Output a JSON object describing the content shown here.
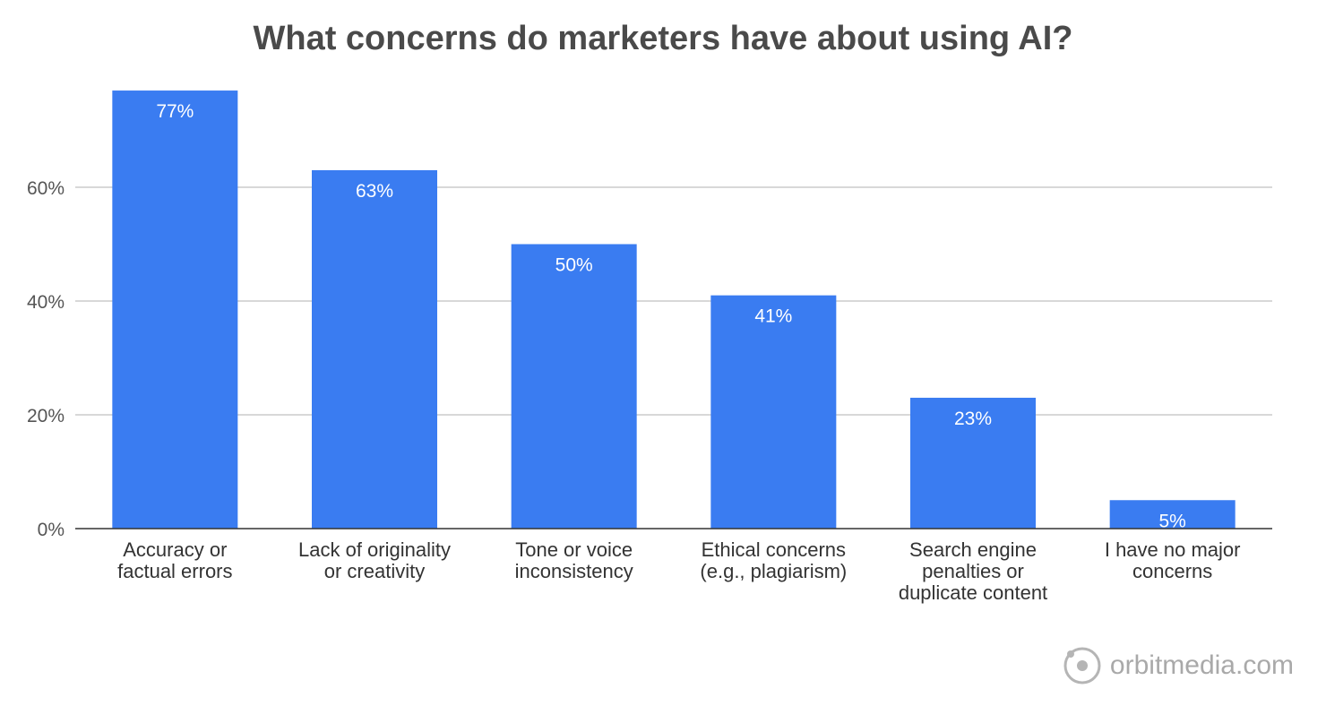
{
  "chart_data": {
    "type": "bar",
    "title": "What concerns do marketers have about using AI?",
    "categories": [
      [
        "Accuracy or",
        "factual errors"
      ],
      [
        "Lack of originality",
        "or creativity"
      ],
      [
        "Tone or voice",
        "inconsistency"
      ],
      [
        "Ethical concerns",
        "(e.g., plagiarism)"
      ],
      [
        "Search engine",
        "penalties or",
        "duplicate content"
      ],
      [
        "I have no major",
        "concerns"
      ]
    ],
    "values": [
      77,
      63,
      50,
      41,
      23,
      5
    ],
    "value_labels": [
      "77%",
      "63%",
      "50%",
      "41%",
      "23%",
      "5%"
    ],
    "yticks": [
      0,
      20,
      40,
      60
    ],
    "ytick_labels": [
      "0%",
      "20%",
      "40%",
      "60%"
    ],
    "ylim": [
      0,
      80
    ],
    "grid": true,
    "bar_color": "#3a7cf1",
    "grid_color": "#cccccc",
    "axis_color": "#333333"
  },
  "watermark": {
    "text": "orbitmedia.com",
    "icon": "orbit-icon"
  }
}
